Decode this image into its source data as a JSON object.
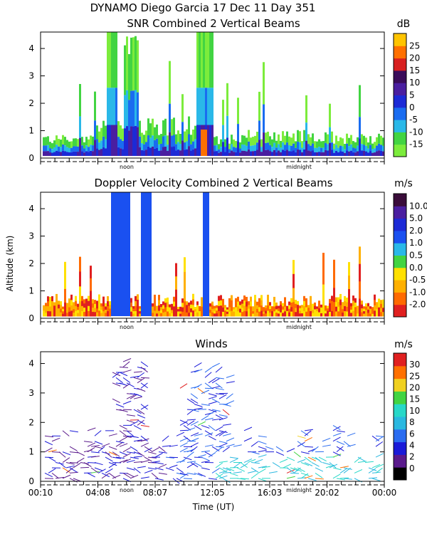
{
  "page": {
    "title_line1": "DYNAMO Diego Garcia  17 Dec 11 Day 351",
    "ylabel": "Altitude (km)",
    "xlabel": "Time (UT)",
    "time_ticks": [
      "00:10",
      "04:08",
      "08:07",
      "12:05",
      "16:03",
      "20:02",
      "00:00"
    ],
    "noon_label": "noon",
    "midnight_label": "midnight"
  },
  "chart_data": [
    {
      "type": "heatmap",
      "title": "SNR Combined 2 Vertical Beams",
      "unit": "dB",
      "ylim": [
        0,
        4.6
      ],
      "yticks": [
        0,
        1,
        2,
        3,
        4
      ],
      "colorbar": {
        "ticks": [
          "-15",
          "-10",
          "-5",
          "0",
          "5",
          "10",
          "15",
          "20",
          "25"
        ],
        "colors": [
          "#7cec3c",
          "#42d442",
          "#2ab8e8",
          "#1a6cf0",
          "#1c2ad6",
          "#4a1ea0",
          "#3a0c5a",
          "#d82020",
          "#ff7000",
          "#ffc400"
        ]
      }
    },
    {
      "type": "heatmap",
      "title": "Doppler Velocity Combined 2 Vertical Beams",
      "unit": "m/s",
      "ylim": [
        0,
        4.6
      ],
      "yticks": [
        0,
        1,
        2,
        3,
        4
      ],
      "colorbar": {
        "ticks": [
          "-2.0",
          "-1.0",
          "-0.5",
          "0.0",
          "0.5",
          "1.0",
          "2.0",
          "5.0",
          "10.0"
        ],
        "colors": [
          "#e02020",
          "#ff6a00",
          "#ffb000",
          "#ffe000",
          "#42d442",
          "#2ab8e8",
          "#1a50f0",
          "#1c2ad6",
          "#4a1ea0",
          "#3a0c3a"
        ]
      }
    },
    {
      "type": "scatter",
      "title": "Winds",
      "unit": "m/s",
      "ylim": [
        0,
        4.4
      ],
      "yticks": [
        0,
        1,
        2,
        3,
        4
      ],
      "colorbar": {
        "ticks": [
          "0",
          "2",
          "4",
          "6",
          "8",
          "10",
          "15",
          "20",
          "25",
          "30"
        ],
        "colors": [
          "#000000",
          "#5a1a8c",
          "#1a1ad8",
          "#2a6cf0",
          "#2ab8e0",
          "#28d8c8",
          "#42d442",
          "#f0d020",
          "#ff7000",
          "#e02020"
        ]
      }
    }
  ]
}
